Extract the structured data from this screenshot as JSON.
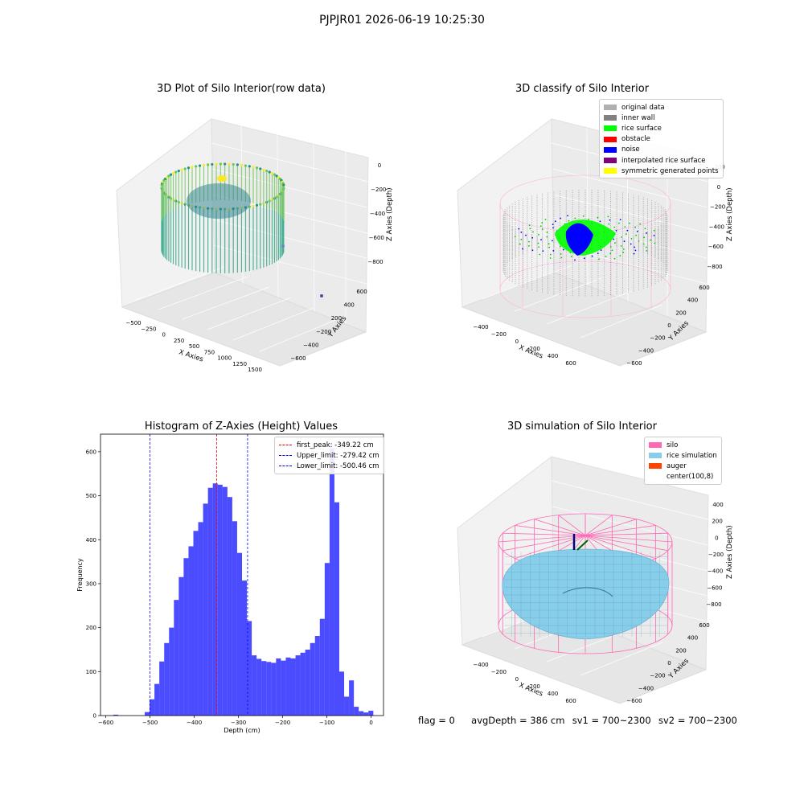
{
  "suptitle": "PJPJR01 2026-06-19 10:25:30",
  "panels": {
    "raw": {
      "title": "3D Plot of Silo Interior(row data)",
      "xlabel": "X Axies",
      "ylabel": "Y Axies",
      "zlabel": "Z Axies (Depth)",
      "xticks": [
        "−500",
        "−250",
        "0",
        "250",
        "500",
        "750",
        "1000",
        "1250",
        "1500"
      ],
      "yticks": [
        "600",
        "400",
        "200",
        "−200",
        "−400",
        "−600"
      ],
      "zticks": [
        "0",
        "−200",
        "−400",
        "−600",
        "−800"
      ]
    },
    "classify": {
      "title": "3D classify of Silo Interior",
      "xlabel": "X Axies",
      "ylabel": "Y Axies",
      "zlabel": "Z Axies (Depth)",
      "xticks": [
        "−400",
        "−200",
        "0",
        "200",
        "400",
        "600"
      ],
      "yticks": [
        "600",
        "400",
        "200",
        "0",
        "−200",
        "−400",
        "−600"
      ],
      "zticks": [
        "200",
        "0",
        "−200",
        "−400",
        "−600",
        "−800"
      ],
      "legend": [
        {
          "label": "original data",
          "color": "#b0b0b0"
        },
        {
          "label": "inner wall",
          "color": "#808080"
        },
        {
          "label": "rice surface",
          "color": "#00ff00"
        },
        {
          "label": "obstacle",
          "color": "#ff0000"
        },
        {
          "label": "noise",
          "color": "#0000ff"
        },
        {
          "label": "interpolated rice surface",
          "color": "#800080"
        },
        {
          "label": "symmetric generated points",
          "color": "#ffff00"
        }
      ]
    },
    "simulation": {
      "title": "3D simulation of Silo Interior",
      "xlabel": "X Axies",
      "ylabel": "Y Axies",
      "zlabel": "Z Axies (Depth)",
      "xticks": [
        "−400",
        "−200",
        "0",
        "200",
        "400",
        "600"
      ],
      "yticks": [
        "600",
        "400",
        "200",
        "0",
        "−200",
        "−400",
        "−600"
      ],
      "zticks": [
        "400",
        "200",
        "0",
        "−200",
        "−400",
        "−600",
        "−800"
      ],
      "legend": [
        {
          "label": "silo",
          "color": "#ff69b4"
        },
        {
          "label": "rice simulation",
          "color": "#87ceeb"
        },
        {
          "label": "auger",
          "color": "#ff4500"
        },
        {
          "label": "center(100,8)",
          "color": "#ffffff"
        }
      ]
    }
  },
  "chart_data": {
    "type": "bar",
    "title": "Histogram of Z-Axies (Height) Values",
    "xlabel": "Depth (cm)",
    "ylabel": "Frequency",
    "xlim": [
      -612,
      28
    ],
    "ylim": [
      0,
      640
    ],
    "xticks": [
      "−600",
      "−500",
      "−400",
      "−300",
      "−200",
      "−100",
      "0"
    ],
    "yticks": [
      "0",
      "100",
      "200",
      "300",
      "400",
      "500",
      "600"
    ],
    "bar_color": "#0000ff",
    "bins": [
      {
        "x0": -583,
        "x1": -572,
        "value": 2
      },
      {
        "x0": -512,
        "x1": -501,
        "value": 8
      },
      {
        "x0": -501,
        "x1": -490,
        "value": 37
      },
      {
        "x0": -490,
        "x1": -479,
        "value": 72
      },
      {
        "x0": -479,
        "x1": -468,
        "value": 123
      },
      {
        "x0": -468,
        "x1": -457,
        "value": 165
      },
      {
        "x0": -457,
        "x1": -446,
        "value": 200
      },
      {
        "x0": -446,
        "x1": -435,
        "value": 263
      },
      {
        "x0": -435,
        "x1": -424,
        "value": 315
      },
      {
        "x0": -424,
        "x1": -413,
        "value": 358
      },
      {
        "x0": -413,
        "x1": -402,
        "value": 385
      },
      {
        "x0": -402,
        "x1": -391,
        "value": 420
      },
      {
        "x0": -391,
        "x1": -380,
        "value": 440
      },
      {
        "x0": -380,
        "x1": -369,
        "value": 482
      },
      {
        "x0": -369,
        "x1": -358,
        "value": 518
      },
      {
        "x0": -358,
        "x1": -347,
        "value": 528
      },
      {
        "x0": -347,
        "x1": -336,
        "value": 525
      },
      {
        "x0": -336,
        "x1": -325,
        "value": 520
      },
      {
        "x0": -325,
        "x1": -314,
        "value": 497
      },
      {
        "x0": -314,
        "x1": -303,
        "value": 442
      },
      {
        "x0": -303,
        "x1": -292,
        "value": 370
      },
      {
        "x0": -292,
        "x1": -281,
        "value": 307
      },
      {
        "x0": -281,
        "x1": -270,
        "value": 215
      },
      {
        "x0": -270,
        "x1": -259,
        "value": 137
      },
      {
        "x0": -259,
        "x1": -248,
        "value": 129
      },
      {
        "x0": -248,
        "x1": -237,
        "value": 124
      },
      {
        "x0": -237,
        "x1": -226,
        "value": 122
      },
      {
        "x0": -226,
        "x1": -215,
        "value": 120
      },
      {
        "x0": -215,
        "x1": -204,
        "value": 130
      },
      {
        "x0": -204,
        "x1": -193,
        "value": 125
      },
      {
        "x0": -193,
        "x1": -182,
        "value": 132
      },
      {
        "x0": -182,
        "x1": -171,
        "value": 130
      },
      {
        "x0": -171,
        "x1": -160,
        "value": 137
      },
      {
        "x0": -160,
        "x1": -149,
        "value": 143
      },
      {
        "x0": -149,
        "x1": -138,
        "value": 150
      },
      {
        "x0": -138,
        "x1": -127,
        "value": 165
      },
      {
        "x0": -127,
        "x1": -116,
        "value": 181
      },
      {
        "x0": -116,
        "x1": -105,
        "value": 220
      },
      {
        "x0": -105,
        "x1": -94,
        "value": 347
      },
      {
        "x0": -94,
        "x1": -83,
        "value": 608
      },
      {
        "x0": -83,
        "x1": -72,
        "value": 485
      },
      {
        "x0": -72,
        "x1": -61,
        "value": 100
      },
      {
        "x0": -61,
        "x1": -50,
        "value": 43
      },
      {
        "x0": -50,
        "x1": -39,
        "value": 80
      },
      {
        "x0": -39,
        "x1": -28,
        "value": 20
      },
      {
        "x0": -28,
        "x1": -17,
        "value": 10
      },
      {
        "x0": -17,
        "x1": -6,
        "value": 7
      },
      {
        "x0": -6,
        "x1": 5,
        "value": 11
      }
    ],
    "vlines": [
      {
        "x": -349.22,
        "color": "#ff0000",
        "label": "first_peak: -349.22 cm"
      },
      {
        "x": -279.42,
        "color": "#0000ff",
        "label": "Upper_limit: -279.42 cm"
      },
      {
        "x": -500.46,
        "color": "#0000ff",
        "label": "Lower_limit: -500.46 cm"
      }
    ],
    "legend_position": "top-right",
    "grid": false
  },
  "footer": {
    "flag": "flag = 0",
    "avg": "avgDepth = 386 cm",
    "sv1": "sv1 = 700~2300",
    "sv2": "sv2 = 700~2300"
  }
}
